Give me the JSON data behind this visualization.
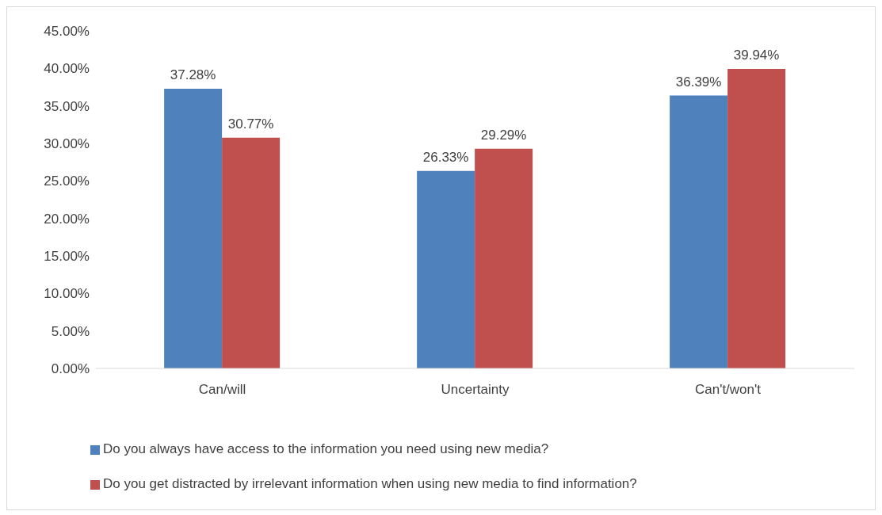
{
  "chart_data": {
    "type": "bar",
    "categories": [
      "Can/will",
      "Uncertainty",
      "Can't/won't"
    ],
    "series": [
      {
        "name": "Do you always have access to the information you need using new media?",
        "color": "#4f81bd",
        "values": [
          37.28,
          26.33,
          36.39
        ],
        "value_labels": [
          "37.28%",
          "26.33%",
          "36.39%"
        ]
      },
      {
        "name": "Do you get distracted by irrelevant information when using new media to find information?",
        "color": "#c0504d",
        "values": [
          30.77,
          29.29,
          39.94
        ],
        "value_labels": [
          "30.77%",
          "29.29%",
          "39.94%"
        ]
      }
    ],
    "ylim": [
      0,
      45
    ],
    "yticks": [
      {
        "value": 0,
        "label": "0.00%"
      },
      {
        "value": 5,
        "label": "5.00%"
      },
      {
        "value": 10,
        "label": "10.00%"
      },
      {
        "value": 15,
        "label": "15.00%"
      },
      {
        "value": 20,
        "label": "20.00%"
      },
      {
        "value": 25,
        "label": "25.00%"
      },
      {
        "value": 30,
        "label": "30.00%"
      },
      {
        "value": 35,
        "label": "35.00%"
      },
      {
        "value": 40,
        "label": "40.00%"
      },
      {
        "value": 45,
        "label": "45.00%"
      }
    ],
    "grid": false,
    "legend": "bottom"
  }
}
